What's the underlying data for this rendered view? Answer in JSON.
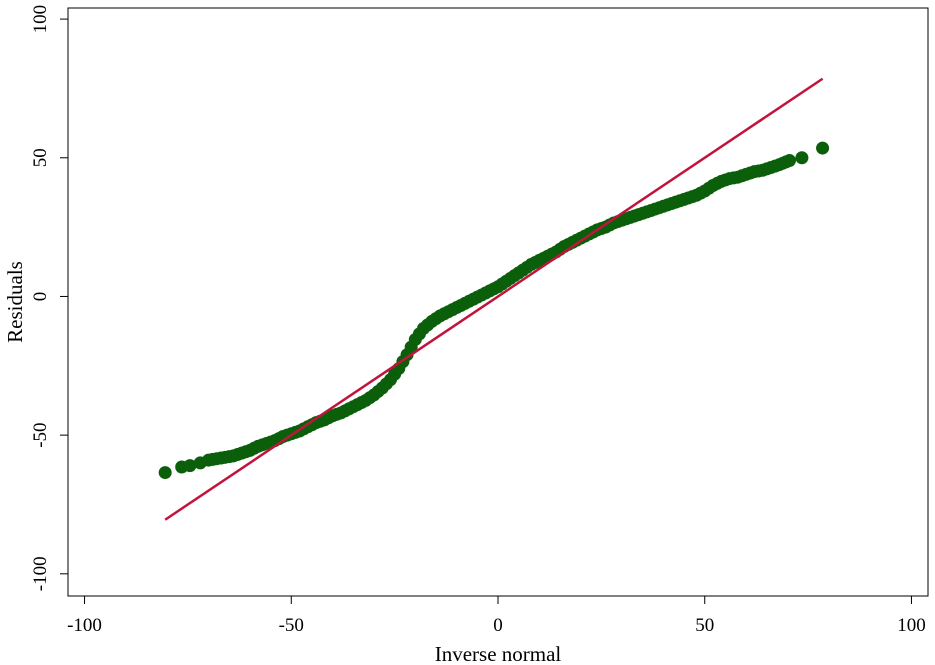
{
  "chart_data": {
    "type": "scatter",
    "title": "",
    "xlabel": "Inverse normal",
    "ylabel": "Residuals",
    "xlim": [
      -104,
      104
    ],
    "ylim": [
      -108,
      104
    ],
    "xticks": [
      -100,
      -50,
      0,
      50,
      100
    ],
    "yticks": [
      -100,
      -50,
      0,
      50,
      100
    ],
    "xtick_labels": [
      "-100",
      "-50",
      "0",
      "50",
      "100"
    ],
    "ytick_labels": [
      "-100",
      "-50",
      "0",
      "50",
      "100"
    ],
    "grid": false,
    "legend": "none",
    "marker_color": "#0b5f0b",
    "line_color": "#c0143c",
    "reference_line": {
      "x": [
        -80.5,
        78.5
      ],
      "y": [
        -80.5,
        78.5
      ]
    },
    "series": [
      {
        "type": "scatter",
        "x": [
          -80.5,
          -76.5,
          -74.5,
          -72,
          -70,
          -68,
          -66,
          -64,
          -62,
          -60,
          -58,
          -56,
          -54,
          -52,
          -50,
          -48,
          -46,
          -44,
          -42,
          -40,
          -38,
          -36,
          -34,
          -32,
          -30,
          -28,
          -26,
          -24,
          -22,
          -20,
          -18,
          -16,
          -14,
          -12,
          -10,
          -8,
          -6,
          -4,
          -2,
          0,
          2,
          4,
          6,
          8,
          10,
          12,
          14,
          16,
          18,
          20,
          22,
          24,
          26,
          28,
          30,
          32,
          34,
          36,
          38,
          40,
          42,
          44,
          46,
          48,
          50,
          52,
          54,
          56,
          58,
          60,
          62,
          64,
          66,
          68,
          70.5,
          73.5,
          78.5
        ],
        "y": [
          -63.5,
          -61.5,
          -61,
          -60,
          -59,
          -58.5,
          -58,
          -57.5,
          -56.5,
          -55.5,
          -54,
          -53,
          -52,
          -50.5,
          -49.5,
          -48.5,
          -47,
          -45.5,
          -44.5,
          -43,
          -42,
          -40.5,
          -39,
          -37.5,
          -35.5,
          -33,
          -30,
          -26,
          -21,
          -15.5,
          -11.5,
          -9,
          -7,
          -5.5,
          -4,
          -2.5,
          -1,
          0.5,
          2,
          3.5,
          5.5,
          7.5,
          9.5,
          11.5,
          13,
          14.5,
          16,
          18,
          19.5,
          21,
          22.5,
          24,
          25,
          26.5,
          27.5,
          28.5,
          29.5,
          30.5,
          31.5,
          32.5,
          33.5,
          34.5,
          35.5,
          36.5,
          38,
          40,
          41.5,
          42.5,
          43,
          44,
          45,
          45.5,
          46.5,
          47.5,
          49,
          50,
          53.5
        ]
      }
    ]
  }
}
